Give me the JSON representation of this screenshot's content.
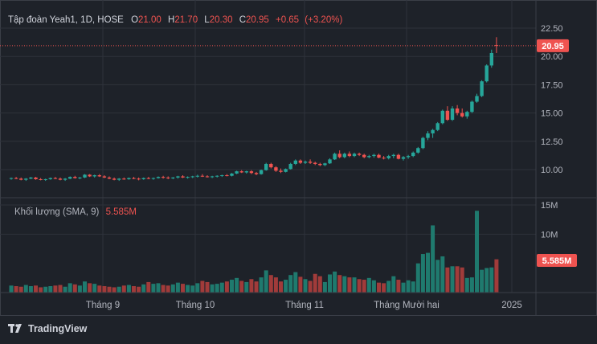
{
  "legend": {
    "symbol_label": "Tập đoàn Yeah1, 1D, HOSE",
    "open_key": "O",
    "open": "21.00",
    "high_key": "H",
    "high": "21.70",
    "low_key": "L",
    "low": "20.30",
    "close_key": "C",
    "close": "20.95",
    "change": "+0.65",
    "change_pct": "(+3.20%)"
  },
  "volume_legend": {
    "label": "Khối lượng (SMA, 9)",
    "value": "5.585M"
  },
  "last_price_tag": "20.95",
  "volume_tag": "5.585M",
  "branding": "TradingView",
  "colors": {
    "background": "#1e2229",
    "grid": "#2e323b",
    "up": "#26a69a",
    "down": "#ef5350",
    "up_volume": "#1f7a6e",
    "down_volume": "#a13b3a",
    "text": "#d1d4dc",
    "axis_text": "#b2b5be"
  },
  "chart_data": {
    "type": "candlestick",
    "price_axis": {
      "ylim": [
        8.0,
        24.0
      ],
      "ticks": [
        "22.50",
        "20.00",
        "17.50",
        "15.00",
        "12.50",
        "10.00"
      ]
    },
    "volume_axis": {
      "ylim": [
        0,
        16000000
      ],
      "ticks": [
        "15M",
        "10M"
      ]
    },
    "time_axis": {
      "labels": [
        "Tháng 9",
        "Tháng 10",
        "Tháng 11",
        "Tháng Mười hai",
        "2025"
      ]
    },
    "candles": [
      [
        9.2,
        9.3,
        9.1,
        9.25,
        1.2
      ],
      [
        9.25,
        9.35,
        9.15,
        9.2,
        1.1
      ],
      [
        9.2,
        9.3,
        9.05,
        9.1,
        1.0
      ],
      [
        9.1,
        9.25,
        9.0,
        9.2,
        1.3
      ],
      [
        9.2,
        9.35,
        9.15,
        9.3,
        1.1
      ],
      [
        9.3,
        9.35,
        9.1,
        9.15,
        1.2
      ],
      [
        9.15,
        9.25,
        9.05,
        9.1,
        0.9
      ],
      [
        9.1,
        9.2,
        9.0,
        9.15,
        1.0
      ],
      [
        9.15,
        9.3,
        9.1,
        9.25,
        1.1
      ],
      [
        9.25,
        9.35,
        9.15,
        9.2,
        1.2
      ],
      [
        9.2,
        9.3,
        9.05,
        9.1,
        1.3
      ],
      [
        9.1,
        9.25,
        9.0,
        9.2,
        1.0
      ],
      [
        9.2,
        9.4,
        9.15,
        9.35,
        1.6
      ],
      [
        9.35,
        9.45,
        9.2,
        9.25,
        1.4
      ],
      [
        9.25,
        9.35,
        9.15,
        9.3,
        1.2
      ],
      [
        9.3,
        9.6,
        9.25,
        9.55,
        1.9
      ],
      [
        9.55,
        9.6,
        9.35,
        9.4,
        1.6
      ],
      [
        9.4,
        9.55,
        9.3,
        9.5,
        1.5
      ],
      [
        9.5,
        9.6,
        9.35,
        9.4,
        1.2
      ],
      [
        9.4,
        9.5,
        9.25,
        9.3,
        1.1
      ],
      [
        9.3,
        9.4,
        9.15,
        9.2,
        1.0
      ],
      [
        9.2,
        9.3,
        9.05,
        9.1,
        0.9
      ],
      [
        9.1,
        9.25,
        9.0,
        9.2,
        1.0
      ],
      [
        9.2,
        9.3,
        9.1,
        9.15,
        1.2
      ],
      [
        9.15,
        9.3,
        9.1,
        9.25,
        1.3
      ],
      [
        9.25,
        9.35,
        9.15,
        9.2,
        1.1
      ],
      [
        9.2,
        9.3,
        9.05,
        9.15,
        1.0
      ],
      [
        9.15,
        9.3,
        9.1,
        9.25,
        1.4
      ],
      [
        9.25,
        9.35,
        9.15,
        9.2,
        1.8
      ],
      [
        9.2,
        9.3,
        9.1,
        9.25,
        1.5
      ],
      [
        9.25,
        9.4,
        9.2,
        9.35,
        1.6
      ],
      [
        9.35,
        9.45,
        9.2,
        9.3,
        1.3
      ],
      [
        9.3,
        9.4,
        9.15,
        9.25,
        1.2
      ],
      [
        9.25,
        9.35,
        9.15,
        9.3,
        1.4
      ],
      [
        9.3,
        9.45,
        9.2,
        9.4,
        1.7
      ],
      [
        9.4,
        9.5,
        9.25,
        9.3,
        1.5
      ],
      [
        9.3,
        9.4,
        9.2,
        9.35,
        1.3
      ],
      [
        9.35,
        9.45,
        9.25,
        9.4,
        1.2
      ],
      [
        9.4,
        9.55,
        9.3,
        9.45,
        1.6
      ],
      [
        9.45,
        9.6,
        9.35,
        9.4,
        2.0
      ],
      [
        9.4,
        9.5,
        9.3,
        9.35,
        1.8
      ],
      [
        9.35,
        9.45,
        9.25,
        9.4,
        1.4
      ],
      [
        9.4,
        9.5,
        9.3,
        9.45,
        1.5
      ],
      [
        9.45,
        9.55,
        9.35,
        9.5,
        1.7
      ],
      [
        9.5,
        9.6,
        9.4,
        9.45,
        1.9
      ],
      [
        9.45,
        9.7,
        9.4,
        9.65,
        2.2
      ],
      [
        9.65,
        9.9,
        9.6,
        9.85,
        2.5
      ],
      [
        9.85,
        9.95,
        9.7,
        9.75,
        2.0
      ],
      [
        9.75,
        9.9,
        9.65,
        9.85,
        1.8
      ],
      [
        9.85,
        9.95,
        9.6,
        9.7,
        2.3
      ],
      [
        9.7,
        9.8,
        9.5,
        9.6,
        1.9
      ],
      [
        9.6,
        10.0,
        9.55,
        9.95,
        2.6
      ],
      [
        9.95,
        10.6,
        9.9,
        10.5,
        3.8
      ],
      [
        10.5,
        10.6,
        10.1,
        10.2,
        3.0
      ],
      [
        10.2,
        10.3,
        9.8,
        9.9,
        2.6
      ],
      [
        9.9,
        10.1,
        9.7,
        9.8,
        1.9
      ],
      [
        9.8,
        10.1,
        9.75,
        10.05,
        2.2
      ],
      [
        10.05,
        10.6,
        10.0,
        10.5,
        3.0
      ],
      [
        10.5,
        10.9,
        10.4,
        10.8,
        3.5
      ],
      [
        10.8,
        10.9,
        10.5,
        10.6,
        2.7
      ],
      [
        10.6,
        10.8,
        10.5,
        10.7,
        2.3
      ],
      [
        10.7,
        10.9,
        10.5,
        10.6,
        2.0
      ],
      [
        10.6,
        10.7,
        10.4,
        10.5,
        3.2
      ],
      [
        10.5,
        10.6,
        10.3,
        10.4,
        2.8
      ],
      [
        10.4,
        10.6,
        10.3,
        10.55,
        1.8
      ],
      [
        10.55,
        11.0,
        10.5,
        10.9,
        3.1
      ],
      [
        10.9,
        11.5,
        10.85,
        11.4,
        3.6
      ],
      [
        11.4,
        11.7,
        11.0,
        11.1,
        3.0
      ],
      [
        11.1,
        11.5,
        11.0,
        11.4,
        2.8
      ],
      [
        11.4,
        11.6,
        11.1,
        11.2,
        2.6
      ],
      [
        11.2,
        11.5,
        11.1,
        11.4,
        2.6
      ],
      [
        11.4,
        11.5,
        11.2,
        11.3,
        2.3
      ],
      [
        11.3,
        11.4,
        11.0,
        11.1,
        2.2
      ],
      [
        11.1,
        11.3,
        11.0,
        11.2,
        2.5
      ],
      [
        11.2,
        11.4,
        11.05,
        11.3,
        2.1
      ],
      [
        11.3,
        11.4,
        11.0,
        11.05,
        1.7
      ],
      [
        11.05,
        11.2,
        10.9,
        11.0,
        1.6
      ],
      [
        11.0,
        11.3,
        10.9,
        11.2,
        2.0
      ],
      [
        11.2,
        11.4,
        11.0,
        11.3,
        2.8
      ],
      [
        11.3,
        11.4,
        10.9,
        10.95,
        2.2
      ],
      [
        10.95,
        11.2,
        10.8,
        11.1,
        1.7
      ],
      [
        11.1,
        11.3,
        10.95,
        11.2,
        2.1
      ],
      [
        11.2,
        11.6,
        11.1,
        11.5,
        1.9
      ],
      [
        11.5,
        12.0,
        11.4,
        11.9,
        5.0
      ],
      [
        11.9,
        12.9,
        11.8,
        12.8,
        6.6
      ],
      [
        12.8,
        13.4,
        12.6,
        13.2,
        6.8
      ],
      [
        13.2,
        13.6,
        12.8,
        13.5,
        11.5
      ],
      [
        13.5,
        14.2,
        13.4,
        14.1,
        5.6
      ],
      [
        14.1,
        15.3,
        14.0,
        15.2,
        6.2
      ],
      [
        15.2,
        15.6,
        14.3,
        14.4,
        4.3
      ],
      [
        14.4,
        15.6,
        14.3,
        15.4,
        4.5
      ],
      [
        15.4,
        15.7,
        14.8,
        15.0,
        4.5
      ],
      [
        15.0,
        15.4,
        14.6,
        14.7,
        4.3
      ],
      [
        14.7,
        15.2,
        14.5,
        15.1,
        2.5
      ],
      [
        15.1,
        16.1,
        15.0,
        16.0,
        2.6
      ],
      [
        16.0,
        16.7,
        15.9,
        16.5,
        14.0
      ],
      [
        16.5,
        17.9,
        16.4,
        17.8,
        3.9
      ],
      [
        17.8,
        19.3,
        17.7,
        19.2,
        4.2
      ],
      [
        19.2,
        20.6,
        19.0,
        20.3,
        4.3
      ],
      [
        21.0,
        21.7,
        20.3,
        20.95,
        5.7
      ]
    ],
    "candle_fields": [
      "open",
      "high",
      "low",
      "close",
      "volume_millions"
    ]
  }
}
